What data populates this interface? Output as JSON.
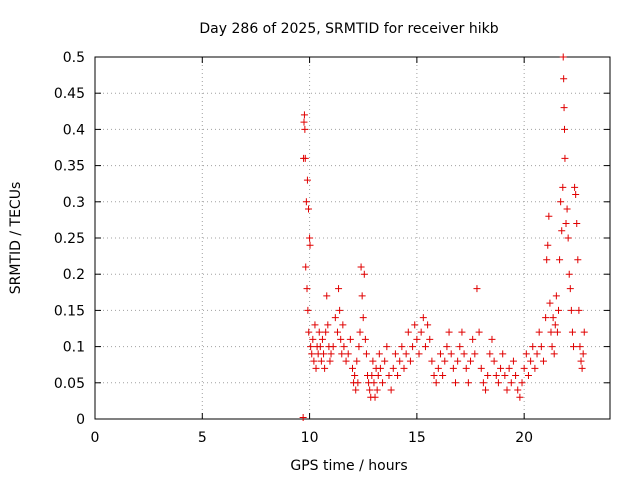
{
  "chart_data": {
    "type": "scatter",
    "title": "Day 286 of 2025, SRMTID for receiver hikb",
    "xlabel": "GPS time / hours",
    "ylabel": "SRMTID / TECUs",
    "xlim": [
      0,
      24
    ],
    "ylim": [
      0,
      0.5
    ],
    "x_ticks": [
      "0",
      "5",
      "10",
      "15",
      "20"
    ],
    "x_tick_values": [
      0,
      5,
      10,
      15,
      20
    ],
    "y_ticks": [
      "0",
      "0.05",
      "0.1",
      "0.15",
      "0.2",
      "0.25",
      "0.3",
      "0.35",
      "0.4",
      "0.45",
      "0.5"
    ],
    "y_tick_values": [
      0,
      0.05,
      0.1,
      0.15,
      0.2,
      0.25,
      0.3,
      0.35,
      0.4,
      0.45,
      0.5
    ],
    "grid": true,
    "marker": "+",
    "color": "#e00000",
    "series": [
      {
        "name": "SRMTID",
        "points": [
          [
            9.7,
            0.002
          ],
          [
            9.72,
            0.36
          ],
          [
            9.74,
            0.41
          ],
          [
            9.76,
            0.42
          ],
          [
            9.78,
            0.4
          ],
          [
            9.8,
            0.36
          ],
          [
            9.85,
            0.3
          ],
          [
            9.9,
            0.33
          ],
          [
            9.95,
            0.29
          ],
          [
            10.0,
            0.25
          ],
          [
            10.02,
            0.24
          ],
          [
            9.82,
            0.21
          ],
          [
            9.88,
            0.18
          ],
          [
            9.92,
            0.15
          ],
          [
            9.96,
            0.12
          ],
          [
            10.05,
            0.1
          ],
          [
            10.1,
            0.09
          ],
          [
            10.15,
            0.11
          ],
          [
            10.2,
            0.08
          ],
          [
            10.25,
            0.13
          ],
          [
            10.3,
            0.07
          ],
          [
            10.35,
            0.1
          ],
          [
            10.4,
            0.09
          ],
          [
            10.45,
            0.12
          ],
          [
            10.5,
            0.1
          ],
          [
            10.55,
            0.08
          ],
          [
            10.6,
            0.11
          ],
          [
            10.65,
            0.09
          ],
          [
            10.7,
            0.07
          ],
          [
            10.75,
            0.12
          ],
          [
            10.8,
            0.17
          ],
          [
            10.85,
            0.13
          ],
          [
            10.9,
            0.1
          ],
          [
            10.95,
            0.08
          ],
          [
            11.0,
            0.09
          ],
          [
            11.1,
            0.1
          ],
          [
            11.2,
            0.14
          ],
          [
            11.3,
            0.12
          ],
          [
            11.35,
            0.18
          ],
          [
            11.4,
            0.15
          ],
          [
            11.45,
            0.11
          ],
          [
            11.5,
            0.09
          ],
          [
            11.55,
            0.13
          ],
          [
            11.6,
            0.1
          ],
          [
            11.7,
            0.08
          ],
          [
            11.8,
            0.09
          ],
          [
            11.9,
            0.11
          ],
          [
            12.0,
            0.07
          ],
          [
            12.05,
            0.05
          ],
          [
            12.1,
            0.06
          ],
          [
            12.15,
            0.04
          ],
          [
            12.2,
            0.08
          ],
          [
            12.25,
            0.05
          ],
          [
            12.3,
            0.1
          ],
          [
            12.35,
            0.12
          ],
          [
            12.4,
            0.21
          ],
          [
            12.45,
            0.17
          ],
          [
            12.5,
            0.14
          ],
          [
            12.55,
            0.2
          ],
          [
            12.6,
            0.11
          ],
          [
            12.65,
            0.09
          ],
          [
            12.7,
            0.06
          ],
          [
            12.75,
            0.05
          ],
          [
            12.8,
            0.04
          ],
          [
            12.85,
            0.03
          ],
          [
            12.9,
            0.06
          ],
          [
            12.95,
            0.08
          ],
          [
            13.0,
            0.05
          ],
          [
            13.05,
            0.03
          ],
          [
            13.1,
            0.07
          ],
          [
            13.15,
            0.04
          ],
          [
            13.2,
            0.06
          ],
          [
            13.25,
            0.09
          ],
          [
            13.3,
            0.07
          ],
          [
            13.4,
            0.05
          ],
          [
            13.5,
            0.08
          ],
          [
            13.6,
            0.1
          ],
          [
            13.7,
            0.06
          ],
          [
            13.8,
            0.04
          ],
          [
            13.9,
            0.07
          ],
          [
            14.0,
            0.09
          ],
          [
            14.1,
            0.06
          ],
          [
            14.2,
            0.08
          ],
          [
            14.3,
            0.1
          ],
          [
            14.4,
            0.07
          ],
          [
            14.5,
            0.09
          ],
          [
            14.6,
            0.12
          ],
          [
            14.7,
            0.08
          ],
          [
            14.8,
            0.1
          ],
          [
            14.9,
            0.13
          ],
          [
            15.0,
            0.11
          ],
          [
            15.1,
            0.09
          ],
          [
            15.2,
            0.12
          ],
          [
            15.3,
            0.14
          ],
          [
            15.4,
            0.1
          ],
          [
            15.5,
            0.13
          ],
          [
            15.6,
            0.11
          ],
          [
            15.7,
            0.08
          ],
          [
            15.8,
            0.06
          ],
          [
            15.9,
            0.05
          ],
          [
            16.0,
            0.07
          ],
          [
            16.1,
            0.09
          ],
          [
            16.2,
            0.06
          ],
          [
            16.3,
            0.08
          ],
          [
            16.4,
            0.1
          ],
          [
            16.5,
            0.12
          ],
          [
            16.6,
            0.09
          ],
          [
            16.7,
            0.07
          ],
          [
            16.8,
            0.05
          ],
          [
            16.9,
            0.08
          ],
          [
            17.0,
            0.1
          ],
          [
            17.1,
            0.12
          ],
          [
            17.2,
            0.09
          ],
          [
            17.3,
            0.07
          ],
          [
            17.4,
            0.05
          ],
          [
            17.5,
            0.08
          ],
          [
            17.6,
            0.11
          ],
          [
            17.7,
            0.09
          ],
          [
            17.8,
            0.18
          ],
          [
            17.9,
            0.12
          ],
          [
            18.0,
            0.07
          ],
          [
            18.1,
            0.05
          ],
          [
            18.2,
            0.04
          ],
          [
            18.3,
            0.06
          ],
          [
            18.4,
            0.09
          ],
          [
            18.5,
            0.11
          ],
          [
            18.6,
            0.08
          ],
          [
            18.7,
            0.06
          ],
          [
            18.8,
            0.05
          ],
          [
            18.9,
            0.07
          ],
          [
            19.0,
            0.09
          ],
          [
            19.1,
            0.06
          ],
          [
            19.2,
            0.04
          ],
          [
            19.3,
            0.07
          ],
          [
            19.4,
            0.05
          ],
          [
            19.5,
            0.08
          ],
          [
            19.6,
            0.06
          ],
          [
            19.7,
            0.04
          ],
          [
            19.8,
            0.03
          ],
          [
            19.9,
            0.05
          ],
          [
            20.0,
            0.07
          ],
          [
            20.1,
            0.09
          ],
          [
            20.2,
            0.06
          ],
          [
            20.3,
            0.08
          ],
          [
            20.4,
            0.1
          ],
          [
            20.5,
            0.07
          ],
          [
            20.6,
            0.09
          ],
          [
            20.7,
            0.12
          ],
          [
            20.8,
            0.1
          ],
          [
            20.9,
            0.08
          ],
          [
            21.0,
            0.14
          ],
          [
            21.05,
            0.22
          ],
          [
            21.1,
            0.24
          ],
          [
            21.15,
            0.28
          ],
          [
            21.2,
            0.16
          ],
          [
            21.25,
            0.12
          ],
          [
            21.3,
            0.1
          ],
          [
            21.35,
            0.14
          ],
          [
            21.4,
            0.09
          ],
          [
            21.45,
            0.13
          ],
          [
            21.5,
            0.17
          ],
          [
            21.55,
            0.12
          ],
          [
            21.6,
            0.15
          ],
          [
            21.65,
            0.22
          ],
          [
            21.7,
            0.3
          ],
          [
            21.75,
            0.26
          ],
          [
            21.8,
            0.32
          ],
          [
            21.82,
            0.5
          ],
          [
            21.84,
            0.47
          ],
          [
            21.86,
            0.43
          ],
          [
            21.88,
            0.4
          ],
          [
            21.9,
            0.36
          ],
          [
            21.95,
            0.27
          ],
          [
            22.0,
            0.29
          ],
          [
            22.05,
            0.25
          ],
          [
            22.1,
            0.2
          ],
          [
            22.15,
            0.18
          ],
          [
            22.2,
            0.15
          ],
          [
            22.25,
            0.12
          ],
          [
            22.3,
            0.1
          ],
          [
            22.35,
            0.32
          ],
          [
            22.4,
            0.31
          ],
          [
            22.45,
            0.27
          ],
          [
            22.5,
            0.22
          ],
          [
            22.55,
            0.15
          ],
          [
            22.6,
            0.1
          ],
          [
            22.65,
            0.08
          ],
          [
            22.7,
            0.07
          ],
          [
            22.75,
            0.09
          ],
          [
            22.8,
            0.12
          ]
        ]
      }
    ]
  }
}
